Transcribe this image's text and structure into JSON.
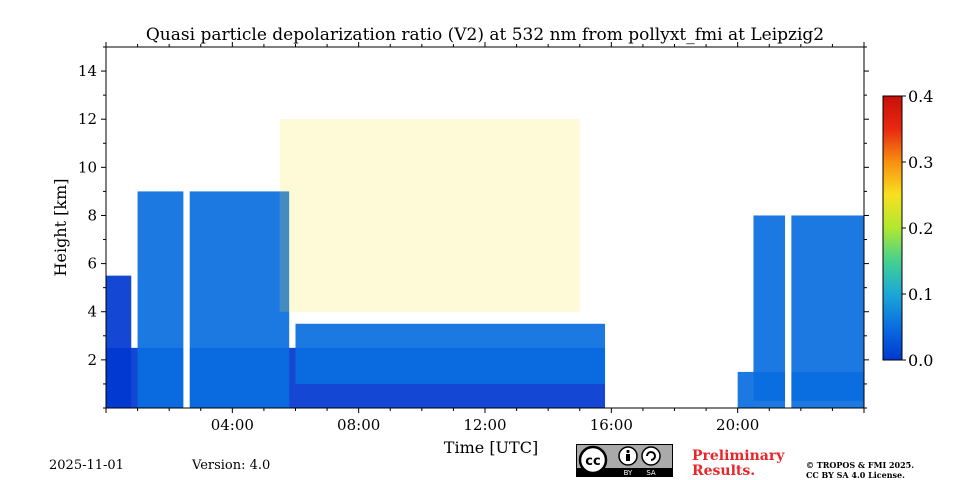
{
  "chart_data": {
    "type": "heatmap",
    "title": "Quasi particle depolarization ratio (V2) at 532 nm from pollyxt_fmi at Leipzig2",
    "xlabel": "Time [UTC]",
    "ylabel": "Height [km]",
    "xlim": [
      0,
      24
    ],
    "ylim": [
      0,
      15
    ],
    "x_tick_labels": [
      "04:00",
      "08:00",
      "12:00",
      "16:00",
      "20:00"
    ],
    "x_tick_values": [
      4,
      8,
      12,
      16,
      20
    ],
    "y_tick_labels": [
      "2",
      "4",
      "6",
      "8",
      "10",
      "12",
      "14"
    ],
    "y_tick_values": [
      2,
      4,
      6,
      8,
      10,
      12,
      14
    ],
    "colorbar": {
      "range": [
        0.0,
        0.4
      ],
      "tick_labels": [
        "0.0",
        "0.1",
        "0.2",
        "0.3",
        "0.4"
      ],
      "tick_values": [
        0.0,
        0.1,
        0.2,
        0.3,
        0.4
      ],
      "colormap": [
        "#0038d0",
        "#0a6ee0",
        "#1aa8d8",
        "#45d090",
        "#b0e830",
        "#f8e020",
        "#f89010",
        "#e82810",
        "#c81008"
      ]
    },
    "regions": [
      {
        "name": "dense-low-layer",
        "t_start": 0.0,
        "t_end": 15.8,
        "h_bottom": 0.0,
        "h_top": 2.5,
        "value": 0.02
      },
      {
        "name": "deep-cloud",
        "t_start": 1.0,
        "t_end": 5.8,
        "h_bottom": 0.0,
        "h_top": 9.0,
        "value": 0.03
      },
      {
        "name": "early-column",
        "t_start": 0.0,
        "t_end": 0.8,
        "h_bottom": 0.0,
        "h_top": 5.5,
        "value": 0.02
      },
      {
        "name": "mid-layer",
        "t_start": 6.0,
        "t_end": 15.8,
        "h_bottom": 1.0,
        "h_top": 3.5,
        "value": 0.05
      },
      {
        "name": "high-cirrus-sparse",
        "t_start": 5.5,
        "t_end": 15.0,
        "h_bottom": 4.0,
        "h_top": 12.0,
        "value": 0.25
      },
      {
        "name": "night-clouds",
        "t_start": 20.5,
        "t_end": 24.0,
        "h_bottom": 0.3,
        "h_top": 8.0,
        "value": 0.03
      },
      {
        "name": "night-low",
        "t_start": 20.0,
        "t_end": 24.0,
        "h_bottom": 0.0,
        "h_top": 1.5,
        "value": 0.04
      }
    ],
    "data_gaps": [
      {
        "t_start": 2.45,
        "t_end": 2.65
      },
      {
        "t_start": 21.5,
        "t_end": 21.7
      }
    ]
  },
  "footer": {
    "date": "2025-11-01",
    "version": "Version: 4.0",
    "license_badge": {
      "by": "BY",
      "sa": "SA"
    },
    "preliminary_line1": "Preliminary",
    "preliminary_line2": "Results.",
    "copyright_line1": "© TROPOS & FMI 2025.",
    "copyright_line2": "CC BY SA 4.0 License."
  },
  "colors": {
    "accent_red": "#e8262a",
    "badge_grey": "#a9aaa9"
  }
}
